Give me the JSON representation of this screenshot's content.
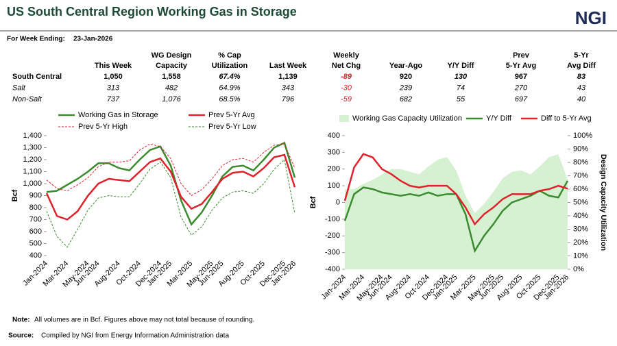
{
  "header": {
    "title": "US South Central Region Working Gas in Storage",
    "logo": "NGI",
    "week_label": "For Week Ending:",
    "week": "23-Jan-2026"
  },
  "table": {
    "columns": [
      [
        "This Week"
      ],
      [
        "WG Design",
        "Capacity"
      ],
      [
        "% Cap",
        "Utilization"
      ],
      [
        "Last Week"
      ],
      [
        "Weekly",
        "Net Chg"
      ],
      [
        "Year-Ago"
      ],
      [
        "Y/Y Diff"
      ],
      [
        "Prev",
        "5-Yr Avg"
      ],
      [
        "5-Yr",
        "Avg Diff"
      ]
    ],
    "rows": [
      {
        "label": "South Central",
        "cells": [
          "1,050",
          "1,558",
          "67.4%",
          "1,139",
          "-89",
          "920",
          "130",
          "967",
          "83"
        ]
      },
      {
        "label": "Salt",
        "cells": [
          "313",
          "482",
          "64.9%",
          "343",
          "-30",
          "239",
          "74",
          "270",
          "43"
        ]
      },
      {
        "label": "Non-Salt",
        "cells": [
          "737",
          "1,076",
          "68.5%",
          "796",
          "-59",
          "682",
          "55",
          "697",
          "40"
        ]
      }
    ]
  },
  "chart_data": [
    {
      "type": "line",
      "ylabel": "Bcf",
      "categories": [
        "Jan-2024",
        null,
        "Mar-2024",
        null,
        "May-2024",
        "Jun-2024",
        null,
        "Aug-2024",
        null,
        "Oct-2024",
        null,
        "Dec-2024",
        "Jan-2025",
        null,
        "Mar-2025",
        null,
        "May-2025",
        "Jun-2025",
        null,
        "Aug-2025",
        null,
        "Oct-2025",
        null,
        "Dec-2025",
        "Jan-2026"
      ],
      "ylim": [
        400,
        1400
      ],
      "yticks": [
        400,
        500,
        600,
        700,
        800,
        900,
        {
          "value": 1000,
          "label": "1,000"
        },
        {
          "value": 1100,
          "label": "1,100"
        },
        {
          "value": 1200,
          "label": "1,200"
        },
        {
          "value": 1300,
          "label": "1,300"
        },
        {
          "value": 1400,
          "label": "1,400"
        }
      ],
      "series": [
        {
          "name": "Working Gas in Storage",
          "color": "#3a8a2e",
          "values": [
            930,
            940,
            990,
            1040,
            1100,
            1170,
            1170,
            1130,
            1110,
            1200,
            1280,
            1310,
            1150,
            860,
            660,
            760,
            900,
            1060,
            1140,
            1150,
            1110,
            1200,
            1300,
            1340,
            1050
          ]
        },
        {
          "name": "Prev 5-Yr Avg",
          "color": "#e0202a",
          "values": [
            920,
            730,
            700,
            770,
            900,
            1000,
            1040,
            1030,
            1020,
            1100,
            1180,
            1210,
            1100,
            890,
            790,
            830,
            930,
            1040,
            1090,
            1100,
            1060,
            1130,
            1220,
            1240,
            970
          ]
        },
        {
          "name": "Prev 5-Yr High",
          "color": "#e0202a",
          "dash": true,
          "values": [
            1030,
            960,
            940,
            990,
            1050,
            1140,
            1180,
            1180,
            1190,
            1280,
            1330,
            1310,
            1210,
            1000,
            900,
            950,
            1040,
            1150,
            1200,
            1210,
            1180,
            1260,
            1320,
            1330,
            1130
          ]
        },
        {
          "name": "Prev 5-Yr Low",
          "color": "#3a8a2e",
          "dash": true,
          "values": [
            770,
            560,
            470,
            620,
            780,
            880,
            900,
            890,
            890,
            1000,
            1120,
            1180,
            1050,
            720,
            570,
            640,
            780,
            880,
            930,
            940,
            920,
            1000,
            1120,
            1200,
            750
          ]
        }
      ]
    },
    {
      "type": "line",
      "ylabel": "Bcf",
      "y2label": "Design Capacity Utilization",
      "categories": [
        "Jan-2024",
        null,
        "Mar-2024",
        null,
        "May-2024",
        "Jun-2024",
        null,
        "Aug-2024",
        null,
        "Oct-2024",
        null,
        "Dec-2024",
        "Jan-2025",
        null,
        "Mar-2025",
        null,
        "May-2025",
        "Jun-2025",
        null,
        "Aug-2025",
        null,
        "Oct-2025",
        null,
        "Dec-2025",
        "Jan-2026"
      ],
      "ylim": [
        -400,
        400
      ],
      "yticks": [
        -400,
        -300,
        -200,
        -100,
        0,
        100,
        200,
        300,
        400
      ],
      "y2lim": [
        0,
        100
      ],
      "y2ticks": [
        {
          "value": 0,
          "label": "0%"
        },
        {
          "value": 10,
          "label": "10%"
        },
        {
          "value": 20,
          "label": "20%"
        },
        {
          "value": 30,
          "label": "30%"
        },
        {
          "value": 40,
          "label": "40%"
        },
        {
          "value": 50,
          "label": "50%"
        },
        {
          "value": 60,
          "label": "60%"
        },
        {
          "value": 70,
          "label": "70%"
        },
        {
          "value": 80,
          "label": "80%"
        },
        {
          "value": 90,
          "label": "90%"
        },
        {
          "value": 100,
          "label": "100%"
        }
      ],
      "series": [
        {
          "name": "Working Gas Capacity Utilization",
          "color": "#d6f0d2",
          "area": true,
          "axis": "y2",
          "values": [
            60,
            60,
            64,
            67,
            71,
            75,
            75,
            73,
            71,
            77,
            82,
            84,
            74,
            55,
            42,
            49,
            58,
            68,
            73,
            74,
            71,
            77,
            84,
            86,
            67
          ]
        },
        {
          "name": "Y/Y Diff",
          "color": "#3a8a2e",
          "values": [
            -110,
            50,
            90,
            80,
            60,
            50,
            40,
            50,
            40,
            60,
            40,
            50,
            50,
            -70,
            -290,
            -200,
            -130,
            -50,
            0,
            20,
            40,
            70,
            40,
            30,
            130
          ]
        },
        {
          "name": "Diff to 5-Yr Avg",
          "color": "#e0202a",
          "values": [
            10,
            210,
            290,
            270,
            200,
            170,
            130,
            100,
            90,
            100,
            100,
            100,
            50,
            -30,
            -130,
            -70,
            -30,
            20,
            50,
            50,
            50,
            70,
            80,
            100,
            83
          ]
        }
      ]
    }
  ],
  "footer": {
    "note_label": "Note:",
    "note": "All volumes  are in Bcf. Figures above may not total  because of rounding.",
    "source_label": "Source:",
    "source": "Compiled by NGI from Energy Information Administration data"
  }
}
